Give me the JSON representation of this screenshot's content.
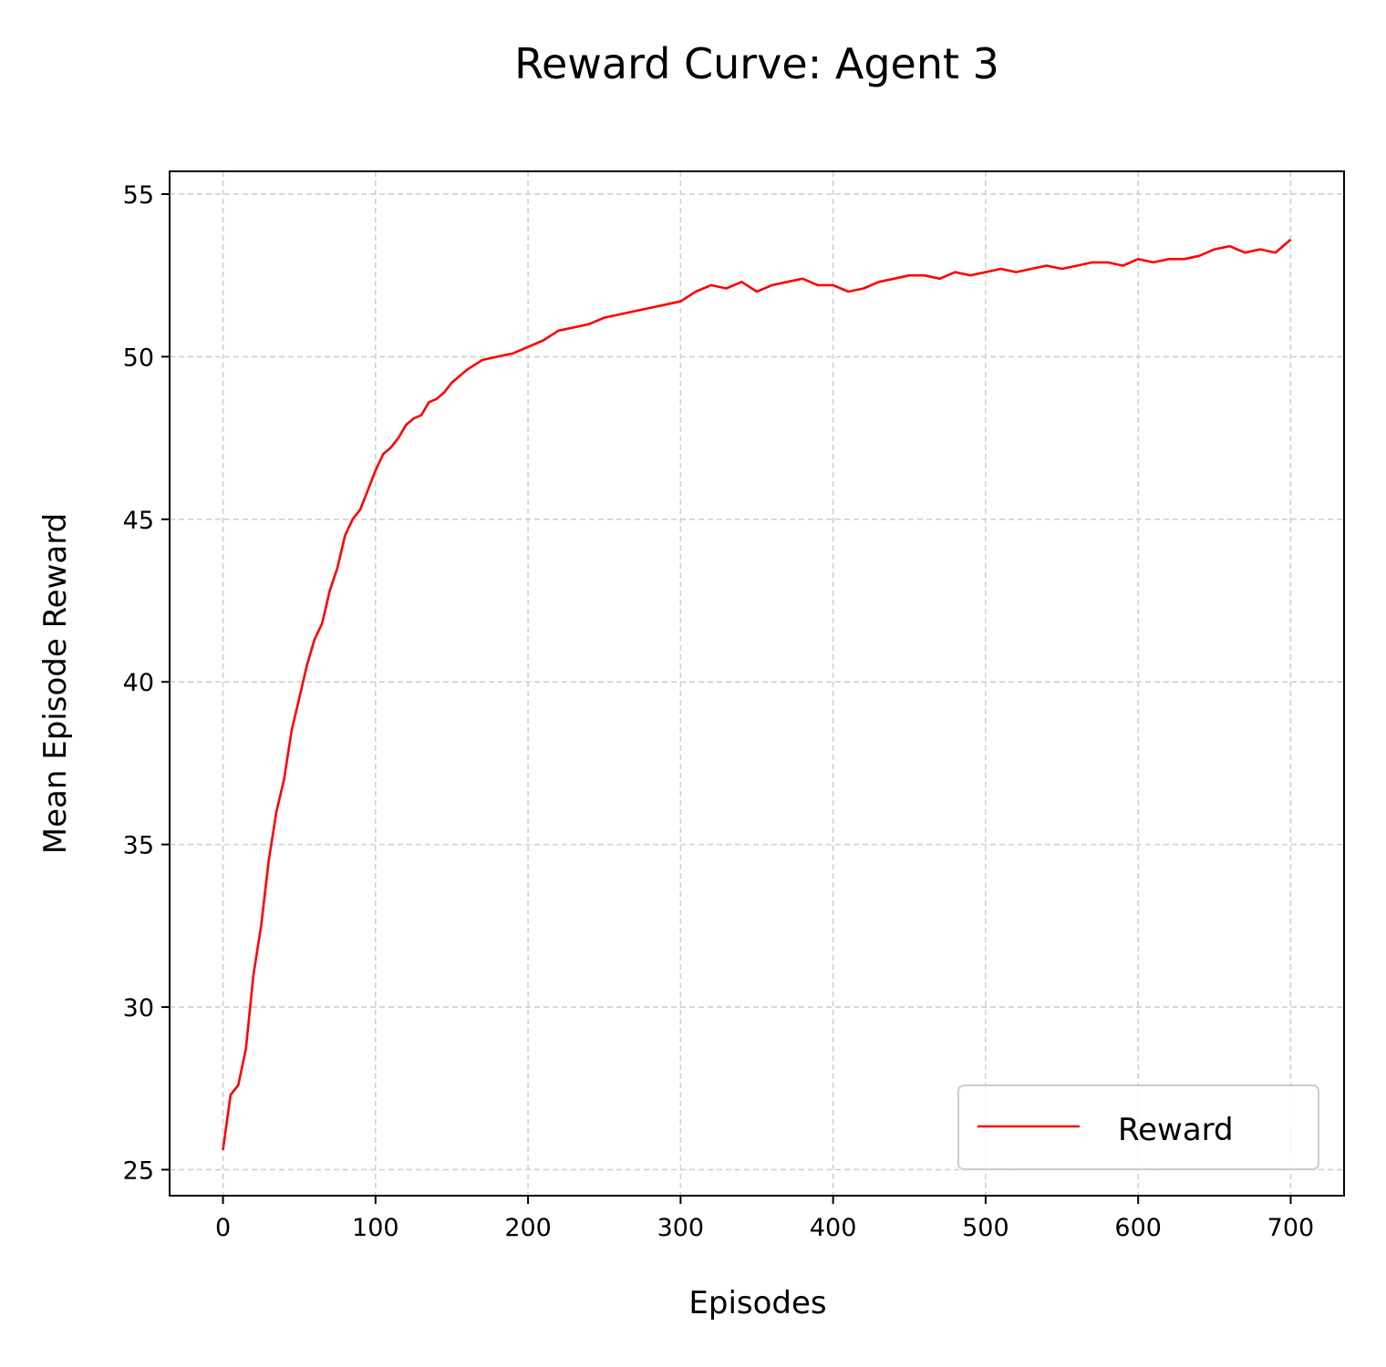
{
  "chart_data": {
    "type": "line",
    "title": "Reward Curve: Agent 3",
    "xlabel": "Episodes",
    "ylabel": "Mean Episode Reward",
    "xlim": [
      -35,
      735
    ],
    "ylim": [
      24.2,
      55.7
    ],
    "x_ticks": [
      0,
      100,
      200,
      300,
      400,
      500,
      600,
      700
    ],
    "y_ticks": [
      25,
      30,
      35,
      40,
      45,
      50,
      55
    ],
    "grid": true,
    "legend_position": "lower-right",
    "series": [
      {
        "name": "Reward",
        "color": "#ff0000",
        "x": [
          0,
          5,
          10,
          15,
          20,
          25,
          30,
          35,
          40,
          45,
          50,
          55,
          60,
          65,
          70,
          75,
          80,
          85,
          90,
          95,
          100,
          105,
          110,
          115,
          120,
          125,
          130,
          135,
          140,
          145,
          150,
          160,
          170,
          180,
          190,
          200,
          210,
          220,
          230,
          240,
          250,
          260,
          270,
          280,
          290,
          300,
          310,
          320,
          330,
          340,
          350,
          360,
          370,
          380,
          390,
          400,
          410,
          420,
          430,
          440,
          450,
          460,
          470,
          480,
          490,
          500,
          510,
          520,
          530,
          540,
          550,
          560,
          570,
          580,
          590,
          600,
          610,
          620,
          630,
          640,
          650,
          660,
          670,
          680,
          690,
          700
        ],
        "y": [
          25.6,
          27.3,
          27.6,
          28.7,
          31.0,
          32.5,
          34.5,
          36.0,
          37.0,
          38.5,
          39.5,
          40.5,
          41.3,
          41.8,
          42.8,
          43.5,
          44.5,
          45.0,
          45.3,
          45.9,
          46.5,
          47.0,
          47.2,
          47.5,
          47.9,
          48.1,
          48.2,
          48.6,
          48.7,
          48.9,
          49.2,
          49.6,
          49.9,
          50.0,
          50.1,
          50.3,
          50.5,
          50.8,
          50.9,
          51.0,
          51.2,
          51.3,
          51.4,
          51.5,
          51.6,
          51.7,
          52.0,
          52.2,
          52.1,
          52.3,
          52.0,
          52.2,
          52.3,
          52.4,
          52.2,
          52.2,
          52.0,
          52.1,
          52.3,
          52.4,
          52.5,
          52.5,
          52.4,
          52.6,
          52.5,
          52.6,
          52.7,
          52.6,
          52.7,
          52.8,
          52.7,
          52.8,
          52.9,
          52.9,
          52.8,
          53.0,
          52.9,
          53.0,
          53.0,
          53.1,
          53.3,
          53.4,
          53.2,
          53.3,
          53.2,
          53.6
        ]
      }
    ]
  }
}
